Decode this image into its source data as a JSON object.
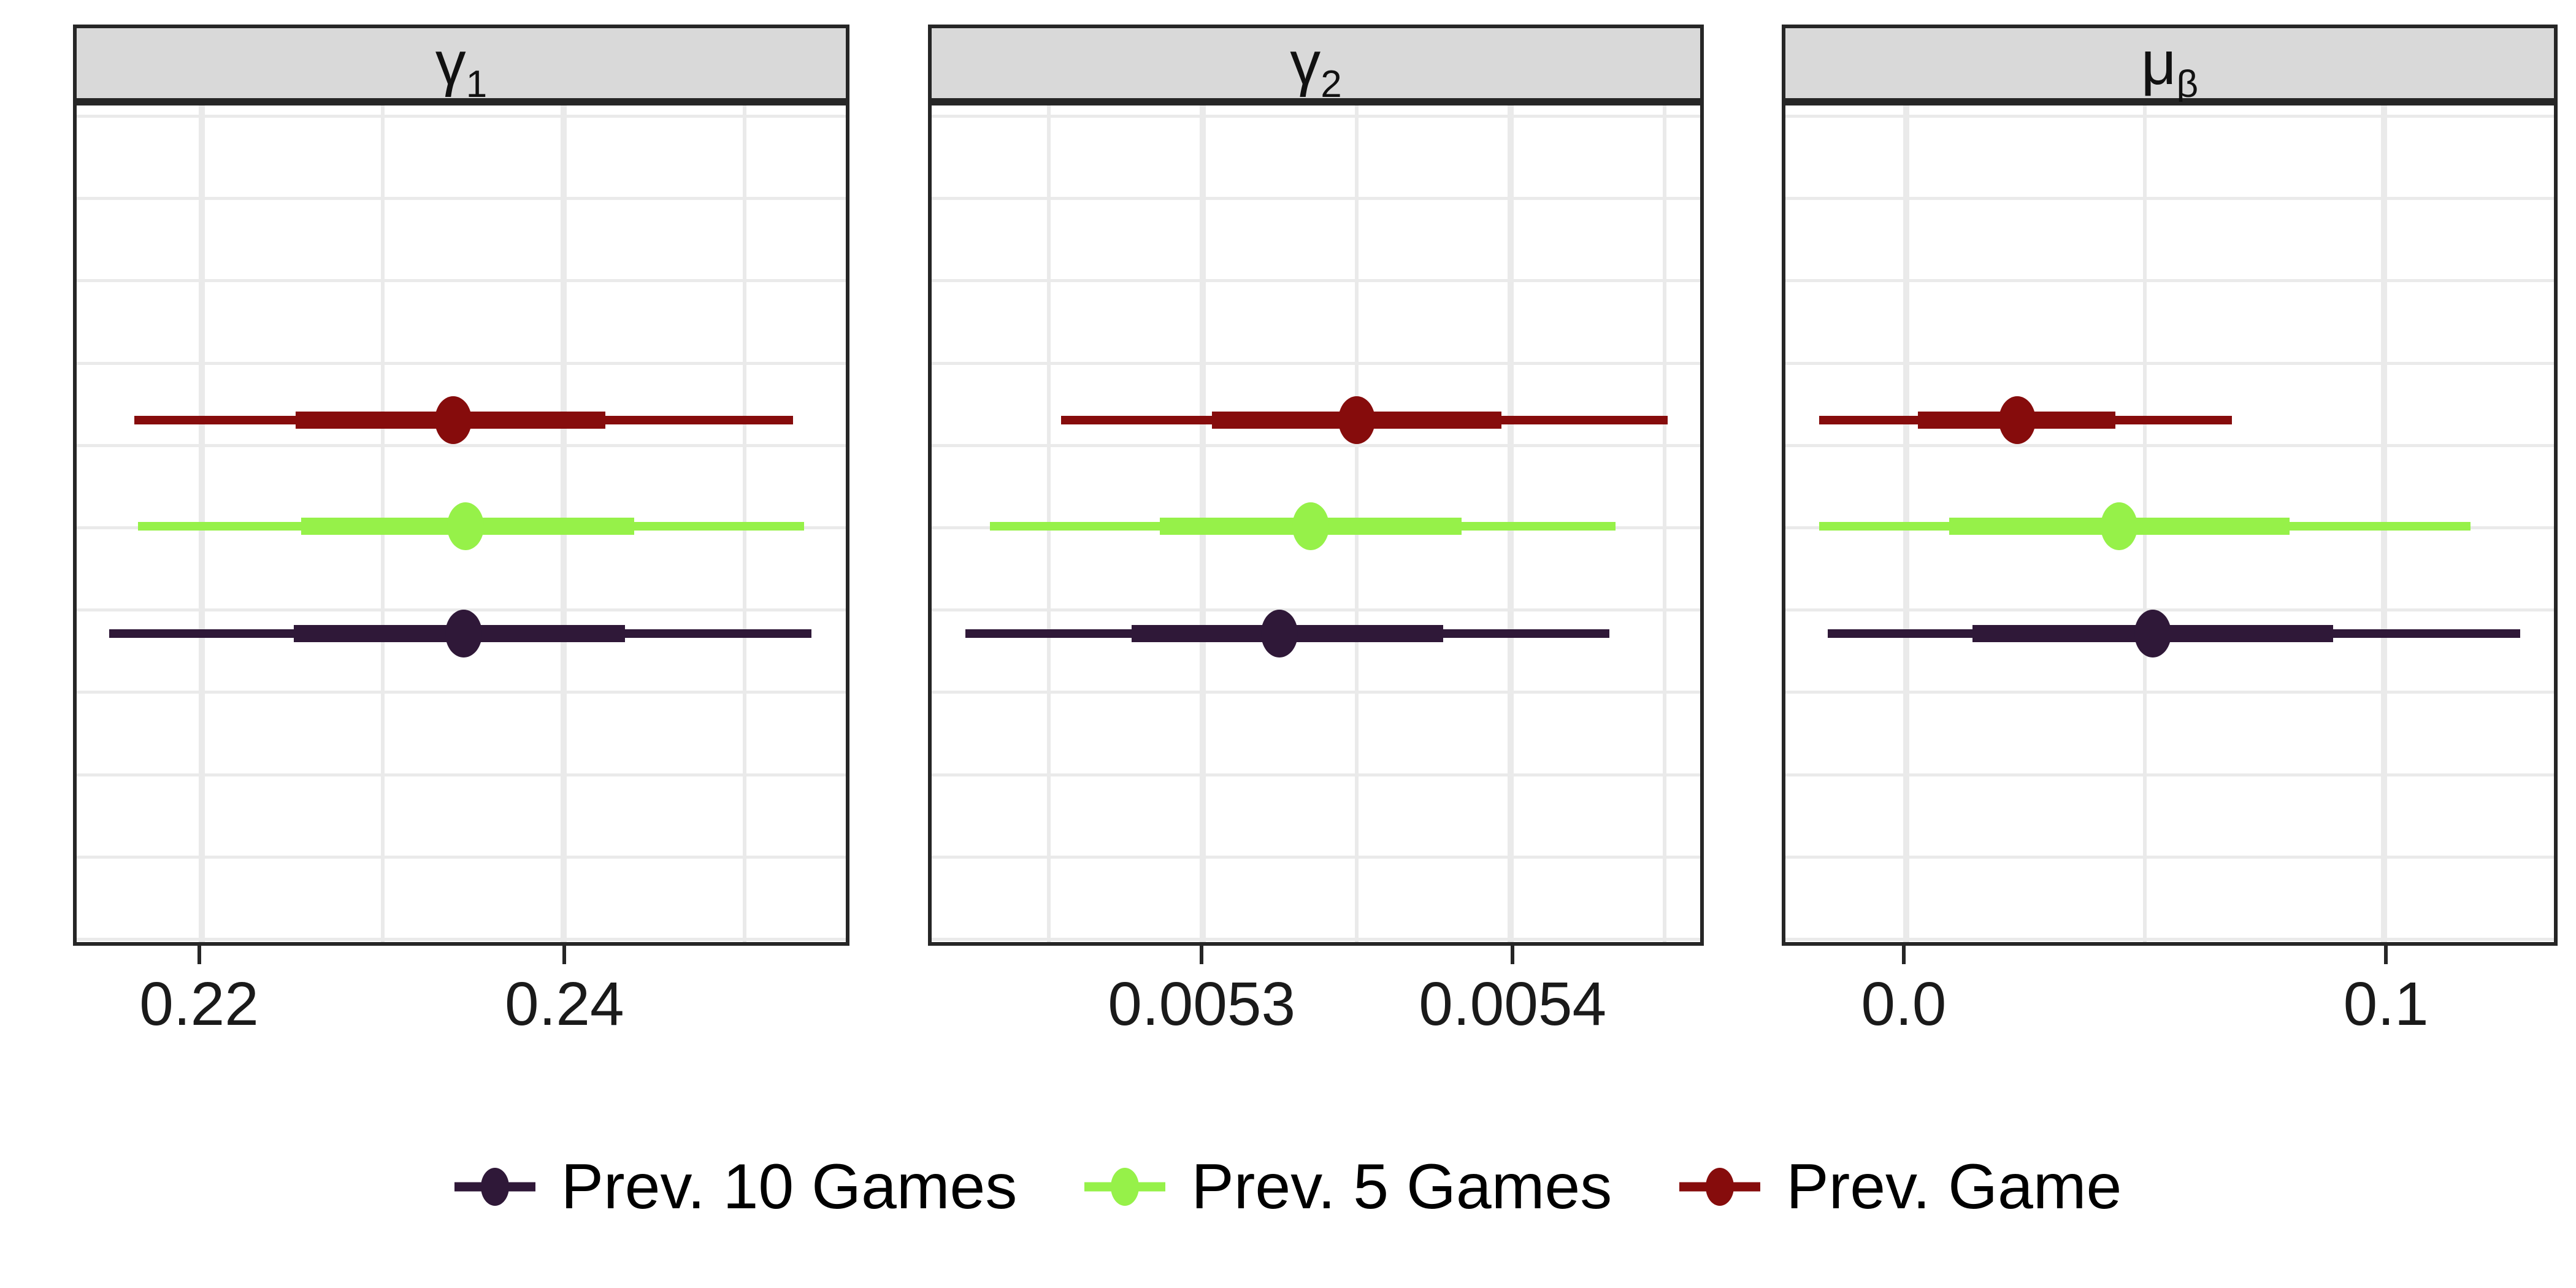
{
  "chart_data": {
    "type": "pointinterval",
    "description": "Faceted posterior point-interval plot: median points with 66% (thick) and 95% (thin) credible intervals for three parameters, compared across three models.",
    "grid": "on",
    "legend_position": "bottom",
    "facets": [
      {
        "label_main": "γ",
        "label_sub": "1",
        "axis": {
          "range": [
            0.2131,
            0.2556
          ],
          "major_ticks": [
            0.22,
            0.24
          ],
          "tick_labels": [
            "0.22",
            "0.24"
          ],
          "minor_ticks": [
            0.23,
            0.25
          ]
        },
        "series": [
          {
            "name": "Prev. Game",
            "color": "#860C0C",
            "row_frac": 0.376,
            "median": 0.2339,
            "ci66": [
              0.2252,
              0.2423
            ],
            "ci95": [
              0.2163,
              0.2527
            ]
          },
          {
            "name": "Prev. 5 Games",
            "color": "#96F149",
            "row_frac": 0.503,
            "median": 0.2346,
            "ci66": [
              0.2255,
              0.2439
            ],
            "ci95": [
              0.2165,
              0.2533
            ]
          },
          {
            "name": "Prev. 10 Games",
            "color": "#2F1838",
            "row_frac": 0.631,
            "median": 0.2345,
            "ci66": [
              0.2251,
              0.2434
            ],
            "ci95": [
              0.2149,
              0.2537
            ]
          }
        ]
      },
      {
        "label_main": "γ",
        "label_sub": "2",
        "axis": {
          "range": [
            0.005212,
            0.0054615
          ],
          "major_ticks": [
            0.0053,
            0.0054
          ],
          "tick_labels": [
            "0.0053",
            "0.0054"
          ],
          "minor_ticks": [
            0.00525,
            0.00535,
            0.00545
          ]
        },
        "series": [
          {
            "name": "Prev. Game",
            "color": "#860C0C",
            "row_frac": 0.376,
            "median": 0.00535,
            "ci66": [
              0.005303,
              0.005397
            ],
            "ci95": [
              0.005254,
              0.005451
            ]
          },
          {
            "name": "Prev. 5 Games",
            "color": "#96F149",
            "row_frac": 0.503,
            "median": 0.005335,
            "ci66": [
              0.005286,
              0.005384
            ],
            "ci95": [
              0.005231,
              0.005434
            ]
          },
          {
            "name": "Prev. 10 Games",
            "color": "#2F1838",
            "row_frac": 0.631,
            "median": 0.005325,
            "ci66": [
              0.005277,
              0.005378
            ],
            "ci95": [
              0.005223,
              0.005432
            ]
          }
        ]
      },
      {
        "label_main": "μ",
        "label_sub": "β",
        "axis": {
          "range": [
            -0.0253,
            0.1356
          ],
          "major_ticks": [
            0.0,
            0.1
          ],
          "tick_labels": [
            "0.0",
            "0.1"
          ],
          "minor_ticks": [
            0.05
          ]
        },
        "series": [
          {
            "name": "Prev. Game",
            "color": "#860C0C",
            "row_frac": 0.376,
            "median": 0.0232,
            "ci66": [
              0.0024,
              0.0438
            ],
            "ci95": [
              -0.0182,
              0.0682
            ]
          },
          {
            "name": "Prev. 5 Games",
            "color": "#96F149",
            "row_frac": 0.503,
            "median": 0.0445,
            "ci66": [
              0.009,
              0.0802
            ],
            "ci95": [
              -0.0182,
              0.1182
            ]
          },
          {
            "name": "Prev. 10 Games",
            "color": "#2F1838",
            "row_frac": 0.631,
            "median": 0.0516,
            "ci66": [
              0.0139,
              0.0894
            ],
            "ci95": [
              -0.0165,
              0.1285
            ]
          }
        ]
      }
    ],
    "legend": [
      {
        "label": "Prev. 10 Games",
        "color": "#2F1838"
      },
      {
        "label": "Prev. 5 Games",
        "color": "#96F149"
      },
      {
        "label": "Prev. Game",
        "color": "#860C0C"
      }
    ],
    "style": {
      "strip_fill": "#D9D9D9",
      "border_color": "#262626",
      "gridline_color": "#EAEAEA",
      "background": "#FFFFFF"
    }
  }
}
